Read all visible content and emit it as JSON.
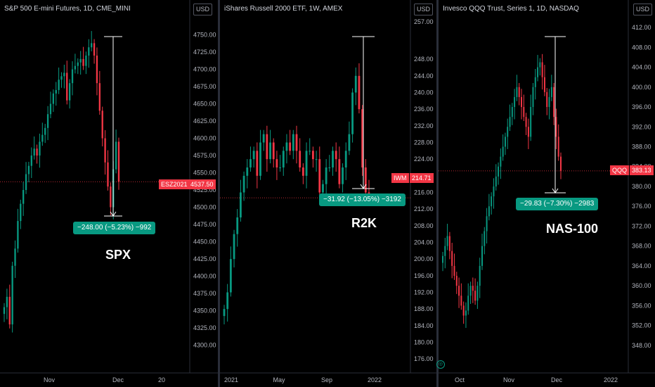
{
  "colors": {
    "up": "#089981",
    "down": "#f23645",
    "axis_text": "#b2b5be",
    "pill": "#089981"
  },
  "panels": [
    {
      "title": "S&P 500 E-mini Futures, 1D, CME_MINI",
      "currency": "USD",
      "note": "SPX",
      "measure": "−248.00 (−5.23%) −992",
      "price_tag": "ESZ2021",
      "price_value": "4537.50",
      "price": 4537.5,
      "y_ticks": [
        "4750.00",
        "4725.00",
        "4700.00",
        "4675.00",
        "4650.00",
        "4625.00",
        "4600.00",
        "4575.00",
        "4550.00",
        "4525.00",
        "4500.00",
        "4475.00",
        "4450.00",
        "4425.00",
        "4400.00",
        "4375.00",
        "4350.00",
        "4325.00",
        "4300.00"
      ],
      "x_ticks": [
        "Nov",
        "Dec",
        "20"
      ]
    },
    {
      "title": "iShares Russell 2000 ETF, 1W, AMEX",
      "currency": "USD",
      "note": "R2K",
      "measure": "−31.92 (−13.05%) −3192",
      "price_tag": "IWM",
      "price_value": "214.71",
      "price": 214.71,
      "y_ticks": [
        "257.00",
        "248.00",
        "244.00",
        "240.00",
        "236.00",
        "232.00",
        "228.00",
        "224.00",
        "220.00",
        "216.00",
        "212.00",
        "208.00",
        "204.00",
        "200.00",
        "196.00",
        "192.00",
        "188.00",
        "184.00",
        "180.00",
        "176.00"
      ],
      "x_ticks": [
        "2021",
        "May",
        "Sep",
        "2022"
      ]
    },
    {
      "title": "Invesco QQQ Trust, Series 1, 1D, NASDAQ",
      "currency": "USD",
      "note": "NAS-100",
      "measure": "−29.83 (−7.30%) −2983",
      "price_tag": "QQQ",
      "price_value": "383.13",
      "price": 383.13,
      "y_ticks": [
        "412.00",
        "408.00",
        "404.00",
        "400.00",
        "396.00",
        "392.00",
        "388.00",
        "384.00",
        "380.00",
        "376.00",
        "372.00",
        "368.00",
        "364.00",
        "360.00",
        "356.00",
        "352.00",
        "348.00"
      ],
      "x_ticks": [
        "Oct",
        "Nov",
        "Dec",
        "2022"
      ]
    }
  ],
  "chart_data": [
    {
      "type": "candlestick",
      "title": "S&P 500 E-mini Futures, 1D, CME_MINI",
      "ylim": [
        4280,
        4770
      ],
      "series": [
        {
          "values": [
            4355,
            4370,
            4330,
            4415,
            4440,
            4480,
            4505,
            4525,
            4548,
            4560,
            4575,
            4585,
            4575,
            4595,
            4605,
            4615,
            4635,
            4650,
            4665,
            4670,
            4685,
            4690,
            4695,
            4655,
            4680,
            4700,
            4705,
            4710,
            4715,
            4705,
            4720,
            4732,
            4738,
            4720,
            4680,
            4640,
            4600,
            4565,
            4530,
            4500,
            4555,
            4595,
            4537
          ]
        }
      ],
      "annotations": [
        "SPX",
        "−248.00 (−5.23%) −992"
      ]
    },
    {
      "type": "candlestick",
      "title": "iShares Russell 2000 ETF, 1W, AMEX",
      "ylim": [
        174,
        258
      ],
      "series": [
        {
          "values": [
            188,
            192,
            200,
            206,
            210,
            216,
            220,
            222,
            224,
            226,
            220,
            228,
            230,
            224,
            228,
            224,
            222,
            222,
            226,
            228,
            226,
            230,
            226,
            222,
            220,
            226,
            226,
            224,
            224,
            216,
            218,
            222,
            222,
            226,
            224,
            218,
            222,
            226,
            230,
            240,
            244,
            236,
            222,
            216,
            214.71
          ]
        }
      ],
      "annotations": [
        "R2K",
        "−31.92 (−13.05%) −3192"
      ]
    },
    {
      "type": "candlestick",
      "title": "Invesco QQQ Trust, Series 1, 1D, NASDAQ",
      "ylim": [
        345,
        414
      ],
      "series": [
        {
          "values": [
            366,
            368,
            370,
            367,
            364,
            362,
            360,
            358,
            356,
            354,
            355,
            358,
            360,
            359,
            357,
            360,
            364,
            368,
            371,
            374,
            376,
            378,
            380,
            382,
            384,
            386,
            388,
            390,
            392,
            394,
            396,
            398,
            400,
            398,
            396,
            394,
            392,
            390,
            396,
            400,
            402,
            404,
            405,
            402,
            399,
            396,
            398,
            400,
            394,
            390,
            386,
            383.13
          ]
        }
      ],
      "annotations": [
        "NAS-100",
        "−29.83 (−7.30%) −2983"
      ]
    }
  ]
}
